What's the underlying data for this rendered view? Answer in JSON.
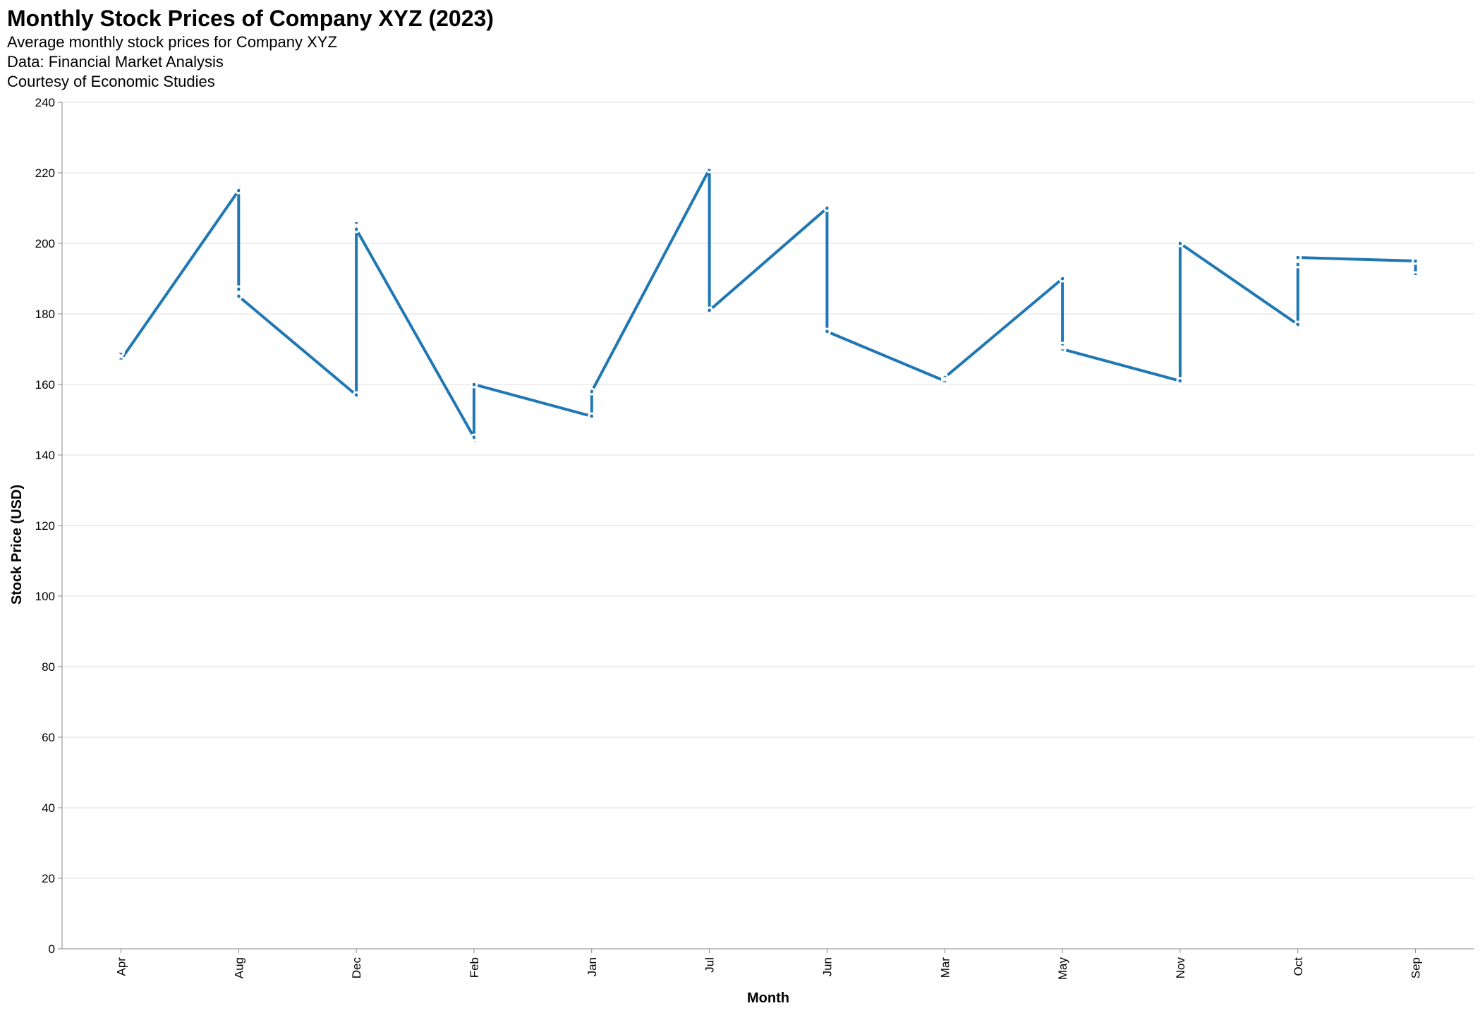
{
  "header": {
    "title": "Monthly Stock Prices of Company XYZ (2023)",
    "subtitle_lines": [
      "Average monthly stock prices for Company XYZ",
      "Data: Financial Market Analysis",
      "Courtesy of Economic Studies"
    ]
  },
  "colors": {
    "series": "#1f77b4",
    "grid": "#dddddd",
    "axis": "#888888",
    "point_stroke": "#ffffff"
  },
  "chart_data": {
    "type": "line",
    "title": "Monthly Stock Prices of Company XYZ (2023)",
    "xlabel": "Month",
    "ylabel": "Stock Price (USD)",
    "ylim": [
      0,
      240
    ],
    "yticks": [
      0,
      20,
      40,
      60,
      80,
      100,
      120,
      140,
      160,
      180,
      200,
      220,
      240
    ],
    "grid": true,
    "categories": [
      "Apr",
      "Aug",
      "Dec",
      "Feb",
      "Jan",
      "Jul",
      "Jun",
      "Mar",
      "May",
      "Nov",
      "Oct",
      "Sep"
    ],
    "points": [
      {
        "month": "Apr",
        "prices": [
          169,
          166,
          167
        ]
      },
      {
        "month": "Aug",
        "prices": [
          215,
          187,
          185
        ]
      },
      {
        "month": "Dec",
        "prices": [
          157,
          206,
          204
        ]
      },
      {
        "month": "Feb",
        "prices": [
          145,
          160
        ]
      },
      {
        "month": "Jan",
        "prices": [
          151,
          158
        ]
      },
      {
        "month": "Jul",
        "prices": [
          221,
          181
        ]
      },
      {
        "month": "Jun",
        "prices": [
          210,
          175
        ]
      },
      {
        "month": "Mar",
        "prices": [
          161,
          162
        ]
      },
      {
        "month": "May",
        "prices": [
          190,
          171,
          170
        ]
      },
      {
        "month": "Nov",
        "prices": [
          161,
          200
        ]
      },
      {
        "month": "Oct",
        "prices": [
          177,
          194,
          196
        ]
      },
      {
        "month": "Sep",
        "prices": [
          195,
          191
        ]
      }
    ]
  }
}
